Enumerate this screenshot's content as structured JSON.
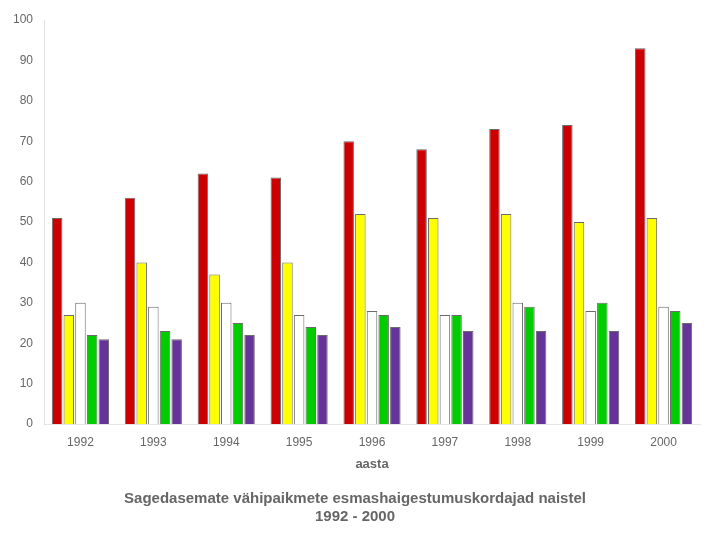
{
  "chart_data": {
    "type": "bar",
    "title": "Sagedasemate vähipaikmete esmashaigestumuskordajad naistel",
    "subtitle": "1992 - 2000",
    "x_label": "aasta",
    "categories": [
      "1992",
      "1993",
      "1994",
      "1995",
      "1996",
      "1997",
      "1998",
      "1999",
      "2000"
    ],
    "series": [
      {
        "color": "#cc0000",
        "values": [
          51,
          56,
          62,
          61,
          70,
          68,
          73,
          74,
          93
        ]
      },
      {
        "color": "#ffff00",
        "values": [
          27,
          40,
          37,
          40,
          52,
          51,
          52,
          50,
          51
        ]
      },
      {
        "color": "#ffffff",
        "values": [
          30,
          29,
          30,
          27,
          28,
          27,
          30,
          28,
          29
        ]
      },
      {
        "color": "#00cc00",
        "values": [
          22,
          23,
          25,
          24,
          27,
          27,
          29,
          30,
          28
        ]
      },
      {
        "color": "#663399",
        "values": [
          21,
          21,
          22,
          22,
          24,
          23,
          23,
          23,
          25
        ]
      }
    ],
    "ylim": [
      0,
      100
    ],
    "yticks": [
      0,
      10,
      20,
      30,
      40,
      50,
      60,
      70,
      80,
      90,
      100
    ],
    "grid": false
  }
}
